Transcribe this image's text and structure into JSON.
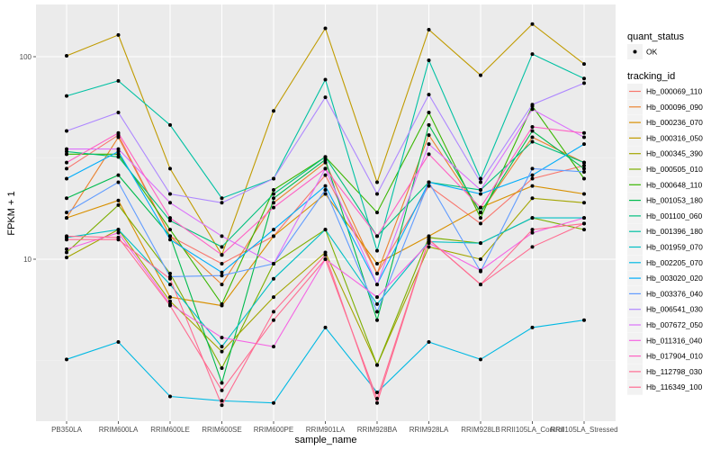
{
  "chart_data": {
    "type": "line",
    "title": "",
    "xlabel": "sample_name",
    "ylabel": "FPKM + 1",
    "yscale": "log10",
    "ylim": [
      1.6,
      180
    ],
    "y_ticks": [
      10,
      100
    ],
    "y_tick_labels": [
      "10",
      "100"
    ],
    "grid": true,
    "categories": [
      "PB350LA",
      "RRIM600LA",
      "RRIM600LE",
      "RRIM600SE",
      "RRIM600PE",
      "RRIM901LA",
      "RRIM928BA",
      "RRIM928LA",
      "RRIM928LB",
      "RRII105LA_Control",
      "RRII105LA_Stressed"
    ],
    "legend_position": "right",
    "legends": [
      {
        "title": "quant_status",
        "entries": [
          {
            "label": "OK",
            "shape": "point"
          }
        ]
      },
      {
        "title": "tracking_id"
      }
    ],
    "series": [
      {
        "name": "Hb_000069_110",
        "color": "#F8766D",
        "values": [
          28,
          41,
          13,
          9.5,
          13,
          26,
          8.5,
          23,
          15,
          25,
          29
        ]
      },
      {
        "name": "Hb_000096_090",
        "color": "#EA8331",
        "values": [
          16,
          40,
          13,
          7.5,
          19,
          30,
          8.5,
          41,
          17,
          40,
          30
        ]
      },
      {
        "name": "Hb_000236_070",
        "color": "#D89000",
        "values": [
          16,
          19.5,
          6.5,
          5.9,
          13,
          21,
          9.5,
          13,
          18,
          23,
          21
        ]
      },
      {
        "name": "Hb_000316_050",
        "color": "#C09B00",
        "values": [
          101,
          128,
          28,
          10.5,
          54,
          138,
          24,
          136,
          81,
          145,
          92
        ]
      },
      {
        "name": "Hb_000345_390",
        "color": "#A3A500",
        "values": [
          10.2,
          14,
          6.2,
          3.5,
          6.5,
          10.8,
          3,
          11.5,
          10,
          20,
          19
        ]
      },
      {
        "name": "Hb_000505_010",
        "color": "#7CAE00",
        "values": [
          10.8,
          18.5,
          8.5,
          2.9,
          9.5,
          14,
          3,
          12.8,
          12,
          16,
          14
        ]
      },
      {
        "name": "Hb_000648_110",
        "color": "#39B600",
        "values": [
          33,
          33,
          14,
          6,
          22,
          32,
          17,
          53,
          16,
          57,
          25
        ]
      },
      {
        "name": "Hb_001053_180",
        "color": "#00BB4E",
        "values": [
          20,
          26,
          13,
          2.45,
          20,
          31,
          5,
          46,
          17,
          43,
          28
        ]
      },
      {
        "name": "Hb_001100_060",
        "color": "#00BF7D",
        "values": [
          34,
          32,
          15.5,
          11.5,
          21,
          32,
          13,
          24,
          22,
          38,
          30
        ]
      },
      {
        "name": "Hb_001396_180",
        "color": "#00C1A3",
        "values": [
          64,
          76,
          46,
          20,
          25,
          77,
          11,
          96,
          25,
          103,
          78
        ]
      },
      {
        "name": "Hb_001959_070",
        "color": "#00BFC4",
        "values": [
          12.8,
          14,
          7.5,
          3.7,
          8,
          14,
          6,
          12.2,
          12,
          16,
          16
        ]
      },
      {
        "name": "Hb_002205_070",
        "color": "#00B9E3",
        "values": [
          3.2,
          3.9,
          2.1,
          2.0,
          1.95,
          4.6,
          2.2,
          3.9,
          3.2,
          4.6,
          5.0
        ]
      },
      {
        "name": "Hb_003020_020",
        "color": "#00ADFA",
        "values": [
          25,
          34,
          12.5,
          8.6,
          14,
          23,
          7.5,
          24,
          21,
          26,
          37
        ]
      },
      {
        "name": "Hb_003376_040",
        "color": "#619CFF",
        "values": [
          17,
          24,
          8.2,
          8.3,
          9.5,
          22,
          5.5,
          24,
          8.7,
          28,
          27
        ]
      },
      {
        "name": "Hb_006541_030",
        "color": "#AE87FF",
        "values": [
          43,
          53,
          21,
          19,
          25,
          63,
          21,
          65,
          24,
          58,
          74
        ]
      },
      {
        "name": "Hb_007672_050",
        "color": "#DB72FB",
        "values": [
          35,
          35,
          19,
          13,
          9.5,
          28,
          7.5,
          37,
          22,
          55,
          40
        ]
      },
      {
        "name": "Hb_011316_040",
        "color": "#F564E3",
        "values": [
          11.2,
          13.5,
          6,
          4.1,
          3.7,
          10,
          6.5,
          12,
          8.8,
          13.5,
          16
        ]
      },
      {
        "name": "Hb_017904_010",
        "color": "#FF61C3",
        "values": [
          30,
          42,
          16,
          10.5,
          18,
          28,
          13,
          33,
          18,
          45,
          42
        ]
      },
      {
        "name": "Hb_112798_030",
        "color": "#FF6C91",
        "values": [
          13,
          12.8,
          5.9,
          2.25,
          5,
          10,
          2.05,
          12.5,
          7.5,
          11.5,
          15
        ]
      },
      {
        "name": "Hb_116349_100",
        "color": "#FF6C91",
        "values": [
          12.5,
          12.5,
          8,
          1.9,
          5.5,
          10.5,
          1.95,
          12.5,
          7.5,
          14,
          15
        ]
      }
    ]
  }
}
